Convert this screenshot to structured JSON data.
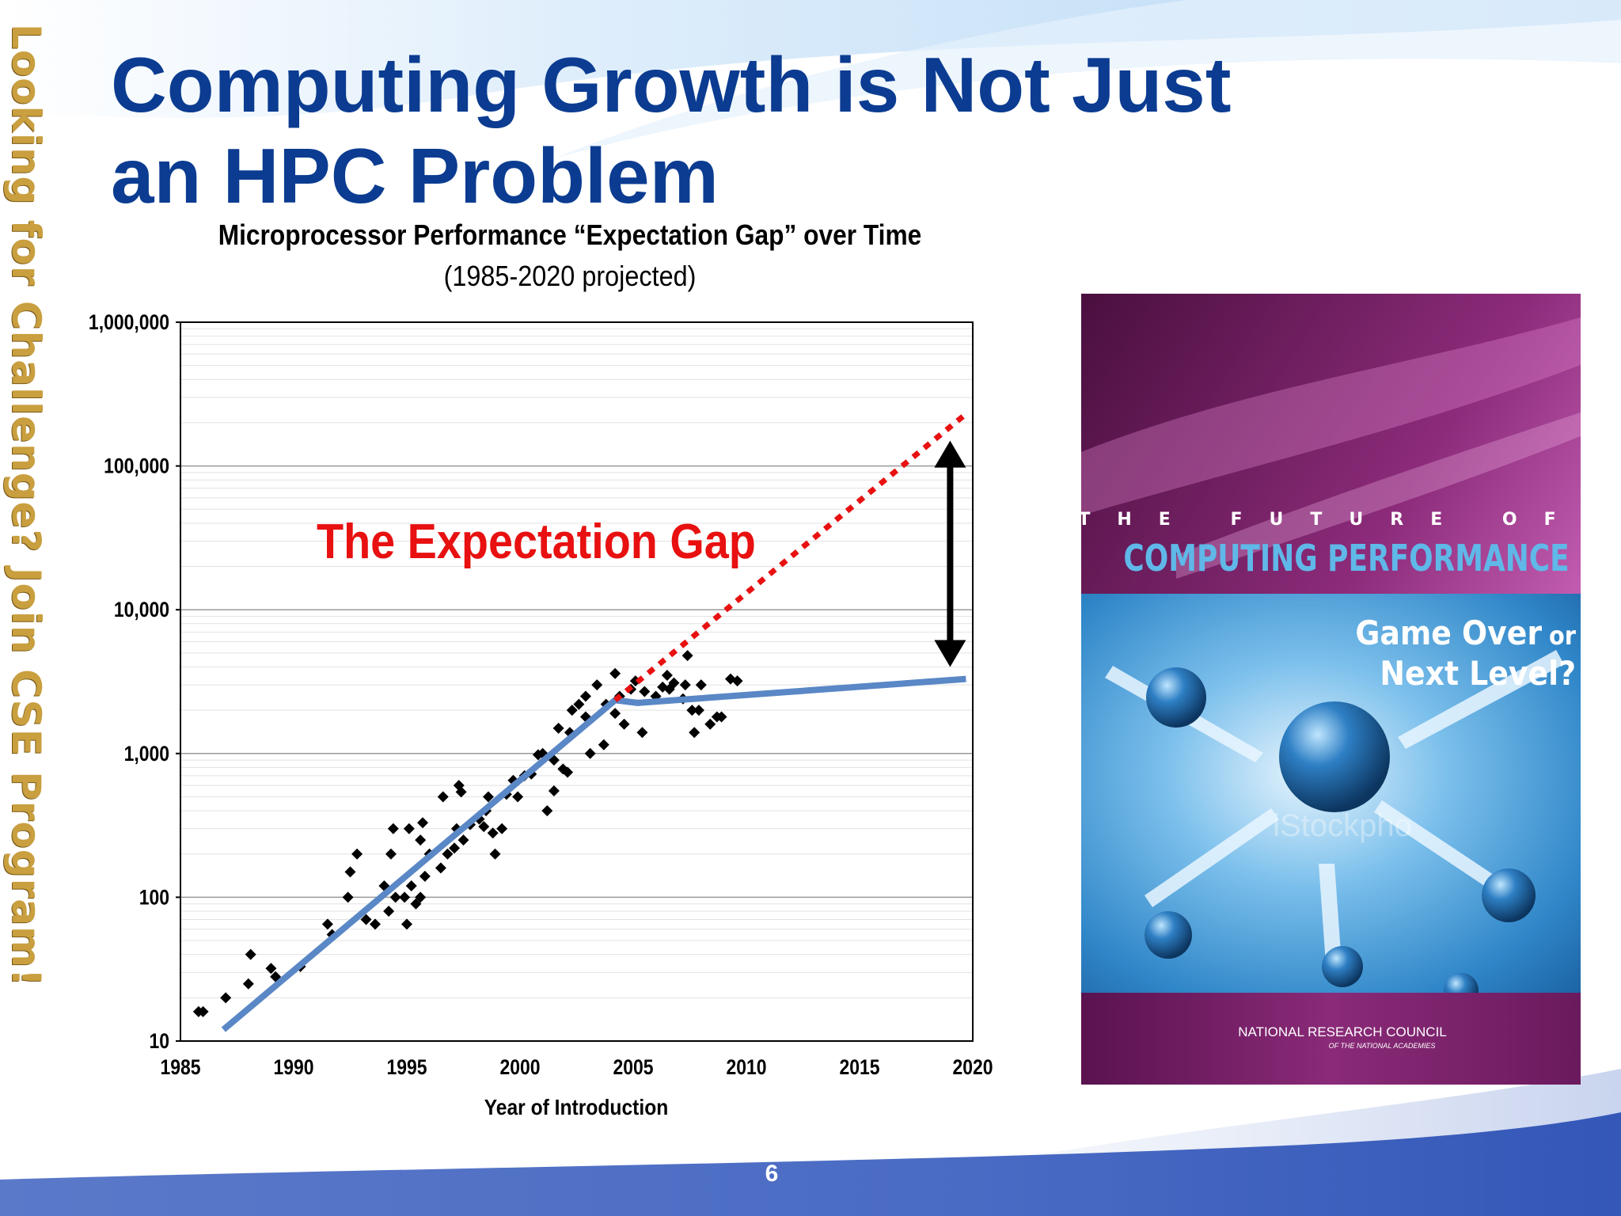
{
  "slide": {
    "title_line1": "Computing Growth is Not Just",
    "title_line2": "an HPC Problem",
    "side_banner": "Looking for Challenge?  Join CSE Program!",
    "page_number": "6",
    "colors": {
      "title": "#0b3c91",
      "side_banner": "#c99f3f"
    }
  },
  "chart_data": {
    "type": "scatter",
    "title": "Microprocessor Performance “Expectation Gap” over Time",
    "subtitle": "(1985-2020 projected)",
    "xlabel": "Year of Introduction",
    "ylabel": "",
    "xlim": [
      1985,
      2020
    ],
    "ylim": [
      10,
      1000000
    ],
    "yscale": "log",
    "grid": true,
    "xticks": [
      1985,
      1990,
      1995,
      2000,
      2005,
      2010,
      2015,
      2020
    ],
    "xtick_labels": [
      "1985",
      "1990",
      "1995",
      "2000",
      "2005",
      "2010",
      "2015",
      "2020"
    ],
    "yticks": [
      10,
      100,
      1000,
      10000,
      100000,
      1000000
    ],
    "ytick_labels": [
      "10",
      "100",
      "1,000",
      "10,000",
      "100,000",
      "1,000,000"
    ],
    "annotation": "The Expectation Gap",
    "colors": {
      "points": "#000000",
      "trend": "#5a87c6",
      "expectation": "#e81010",
      "gap_arrow": "#000000",
      "annotation": "#e81010"
    },
    "points": [
      [
        1985.8,
        16
      ],
      [
        1986.0,
        16
      ],
      [
        1987.0,
        20
      ],
      [
        1988.1,
        40
      ],
      [
        1988.0,
        25
      ],
      [
        1989.0,
        32
      ],
      [
        1989.2,
        28
      ],
      [
        1990.3,
        33
      ],
      [
        1991.5,
        65
      ],
      [
        1991.7,
        55
      ],
      [
        1992.4,
        100
      ],
      [
        1992.5,
        150
      ],
      [
        1992.8,
        200
      ],
      [
        1993.2,
        70
      ],
      [
        1993.6,
        65
      ],
      [
        1994.0,
        120
      ],
      [
        1994.2,
        80
      ],
      [
        1994.3,
        200
      ],
      [
        1994.4,
        300
      ],
      [
        1994.5,
        100
      ],
      [
        1994.9,
        100
      ],
      [
        1995.0,
        65
      ],
      [
        1995.1,
        300
      ],
      [
        1995.2,
        120
      ],
      [
        1995.4,
        90
      ],
      [
        1995.6,
        100
      ],
      [
        1995.6,
        250
      ],
      [
        1995.7,
        330
      ],
      [
        1995.8,
        140
      ],
      [
        1996.0,
        200
      ],
      [
        1996.5,
        160
      ],
      [
        1996.6,
        500
      ],
      [
        1996.8,
        200
      ],
      [
        1997.1,
        220
      ],
      [
        1997.2,
        300
      ],
      [
        1997.3,
        600
      ],
      [
        1997.4,
        540
      ],
      [
        1997.5,
        250
      ],
      [
        1997.8,
        320
      ],
      [
        1998.2,
        350
      ],
      [
        1998.4,
        310
      ],
      [
        1998.5,
        400
      ],
      [
        1998.6,
        500
      ],
      [
        1998.8,
        280
      ],
      [
        1998.9,
        200
      ],
      [
        1999.2,
        300
      ],
      [
        1999.4,
        520
      ],
      [
        1999.7,
        650
      ],
      [
        1999.9,
        500
      ],
      [
        2000.2,
        700
      ],
      [
        2000.5,
        720
      ],
      [
        2000.8,
        980
      ],
      [
        2001.0,
        1000
      ],
      [
        2001.2,
        400
      ],
      [
        2001.5,
        550
      ],
      [
        2001.5,
        900
      ],
      [
        2001.7,
        1500
      ],
      [
        2001.9,
        780
      ],
      [
        2002.2,
        1400
      ],
      [
        2002.1,
        740
      ],
      [
        2002.3,
        2000
      ],
      [
        2002.6,
        2200
      ],
      [
        2002.9,
        2500
      ],
      [
        2002.9,
        1800
      ],
      [
        2003.1,
        1000
      ],
      [
        2003.4,
        3000
      ],
      [
        2003.7,
        1150
      ],
      [
        2003.8,
        2200
      ],
      [
        2004.2,
        3600
      ],
      [
        2004.2,
        1900
      ],
      [
        2004.4,
        2500
      ],
      [
        2004.6,
        1600
      ],
      [
        2004.9,
        2800
      ],
      [
        2005.1,
        3200
      ],
      [
        2005.4,
        1400
      ],
      [
        2005.5,
        2700
      ],
      [
        2006.0,
        2500
      ],
      [
        2006.3,
        2900
      ],
      [
        2006.5,
        3500
      ],
      [
        2006.6,
        2800
      ],
      [
        2006.8,
        3100
      ],
      [
        2007.2,
        2400
      ],
      [
        2007.3,
        3000
      ],
      [
        2007.4,
        4800
      ],
      [
        2007.6,
        2000
      ],
      [
        2007.7,
        1400
      ],
      [
        2007.9,
        2000
      ],
      [
        2008.0,
        3000
      ],
      [
        2008.4,
        1600
      ],
      [
        2008.7,
        1800
      ],
      [
        2008.9,
        1800
      ],
      [
        2009.3,
        3300
      ],
      [
        2009.6,
        3200
      ]
    ],
    "series": [
      {
        "type": "line",
        "values": [
          [
            1986.9,
            12
          ],
          [
            2004.2,
            2350
          ],
          [
            2005.2,
            2250
          ],
          [
            2019.7,
            3300
          ]
        ]
      },
      {
        "type": "dashed",
        "values": [
          [
            2004.2,
            2350
          ],
          [
            2019.7,
            230000
          ]
        ]
      }
    ],
    "gap_arrow": {
      "x": 2019.0,
      "y_from": 4000,
      "y_to": 150000
    },
    "annotation_position": "upper-left"
  },
  "book_cover": {
    "line1": "THE FUTURE OF",
    "line2": "COMPUTING PERFORMANCE",
    "tagline1a": "Game Over",
    "tagline1b": "or",
    "tagline2": "Next Level?",
    "watermark": "iStockpho",
    "publisher": "NATIONAL RESEARCH COUNCIL",
    "publisher_sub": "OF THE NATIONAL ACADEMIES",
    "colors": {
      "band": "#7a1d66",
      "title_blue": "#5fb8e8",
      "image_blue": "#2f86c8"
    }
  }
}
